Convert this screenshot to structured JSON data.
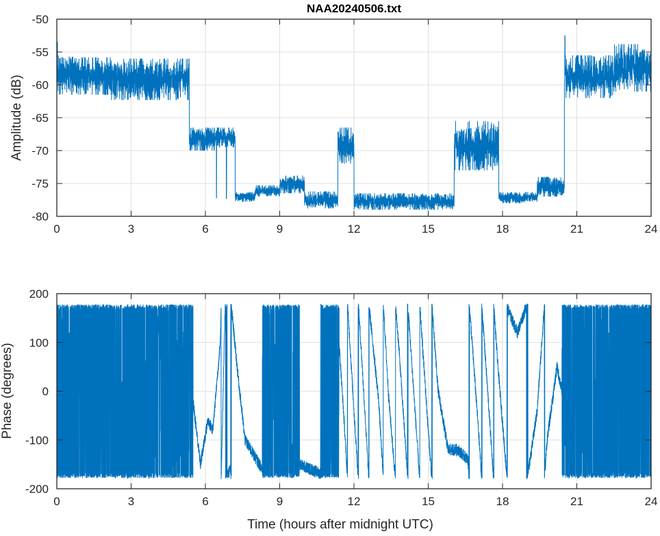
{
  "chart_data": [
    {
      "type": "line",
      "title": "NAA20240506.txt",
      "xlabel": "",
      "ylabel": "Amplitude (dB)",
      "xlim": [
        0,
        24
      ],
      "ylim": [
        -80,
        -50
      ],
      "xticks": [
        "0",
        "3",
        "6",
        "9",
        "12",
        "15",
        "18",
        "21",
        "24"
      ],
      "yticks": [
        "-50",
        "-55",
        "-60",
        "-65",
        "-70",
        "-75",
        "-80"
      ],
      "grid": true,
      "color": "#0072BD",
      "band_segments_hours_min_max_dB": [
        [
          0.0,
          0.7,
          -61.5,
          -55.5
        ],
        [
          0.7,
          2.2,
          -61.5,
          -55.8
        ],
        [
          2.2,
          5.35,
          -62.3,
          -56.0
        ],
        [
          5.35,
          6.4,
          -70.0,
          -66.5
        ],
        [
          6.4,
          7.2,
          -69.5,
          -66.5
        ],
        [
          7.2,
          8.0,
          -77.8,
          -76.3
        ],
        [
          8.0,
          9.0,
          -77.0,
          -75.3
        ],
        [
          9.0,
          10.0,
          -76.5,
          -73.8
        ],
        [
          10.0,
          11.35,
          -78.8,
          -76.2
        ],
        [
          11.35,
          12.0,
          -72.0,
          -66.5
        ],
        [
          12.0,
          16.05,
          -79.0,
          -76.5
        ],
        [
          16.05,
          17.85,
          -73.0,
          -65.5
        ],
        [
          17.85,
          19.4,
          -78.0,
          -76.3
        ],
        [
          19.4,
          20.5,
          -77.0,
          -74.0
        ],
        [
          20.5,
          22.5,
          -62.0,
          -55.5
        ],
        [
          22.5,
          24.0,
          -61.0,
          -53.8
        ]
      ],
      "spikes_hours_dB": [
        [
          0.02,
          -53.5
        ],
        [
          6.45,
          -77.2
        ],
        [
          6.85,
          -77.3
        ],
        [
          20.52,
          -52.5
        ]
      ]
    },
    {
      "type": "line",
      "title": "",
      "xlabel": "Time (hours after midnight UTC)",
      "ylabel": "Phase (degrees)",
      "xlim": [
        0,
        24
      ],
      "ylim": [
        -200,
        200
      ],
      "xticks": [
        "0",
        "3",
        "6",
        "9",
        "12",
        "15",
        "18",
        "21",
        "24"
      ],
      "yticks": [
        "200",
        "100",
        "0",
        "-100",
        "-200"
      ],
      "grid": true,
      "color": "#0072BD",
      "wrap_degrees": 180,
      "dense_wrapping_ranges_hours": [
        [
          0,
          5.5
        ],
        [
          8.3,
          9.8
        ],
        [
          10.7,
          11.4
        ],
        [
          20.4,
          24
        ]
      ],
      "unwrapped_phase_keypoints_hours_deg": [
        [
          5.5,
          -20
        ],
        [
          5.8,
          -150
        ],
        [
          6.1,
          -60
        ],
        [
          6.3,
          -80
        ],
        [
          6.6,
          100
        ],
        [
          6.8,
          540
        ],
        [
          7.0,
          560
        ],
        [
          7.3,
          400
        ],
        [
          7.6,
          260
        ],
        [
          8.3,
          200
        ],
        [
          9.8,
          -150
        ],
        [
          10.7,
          -170
        ],
        [
          11.4,
          100
        ],
        [
          11.6,
          -60
        ],
        [
          12.0,
          -400
        ],
        [
          12.3,
          -640
        ],
        [
          12.6,
          -900
        ],
        [
          13.0,
          -1100
        ],
        [
          13.4,
          -1450
        ],
        [
          13.8,
          -1700
        ],
        [
          14.2,
          -2000
        ],
        [
          14.6,
          -2300
        ],
        [
          15.0,
          -2600
        ],
        [
          15.4,
          -2880
        ],
        [
          15.8,
          -3000
        ],
        [
          16.2,
          -3000
        ],
        [
          16.6,
          -3020
        ],
        [
          17.0,
          -3300
        ],
        [
          17.4,
          -3600
        ],
        [
          17.8,
          -3900
        ],
        [
          18.2,
          -4150
        ],
        [
          18.6,
          -4200
        ],
        [
          19.0,
          -4140
        ],
        [
          19.4,
          -4000
        ],
        [
          19.8,
          -3700
        ],
        [
          20.2,
          -3550
        ],
        [
          20.4,
          -3600
        ]
      ]
    }
  ]
}
